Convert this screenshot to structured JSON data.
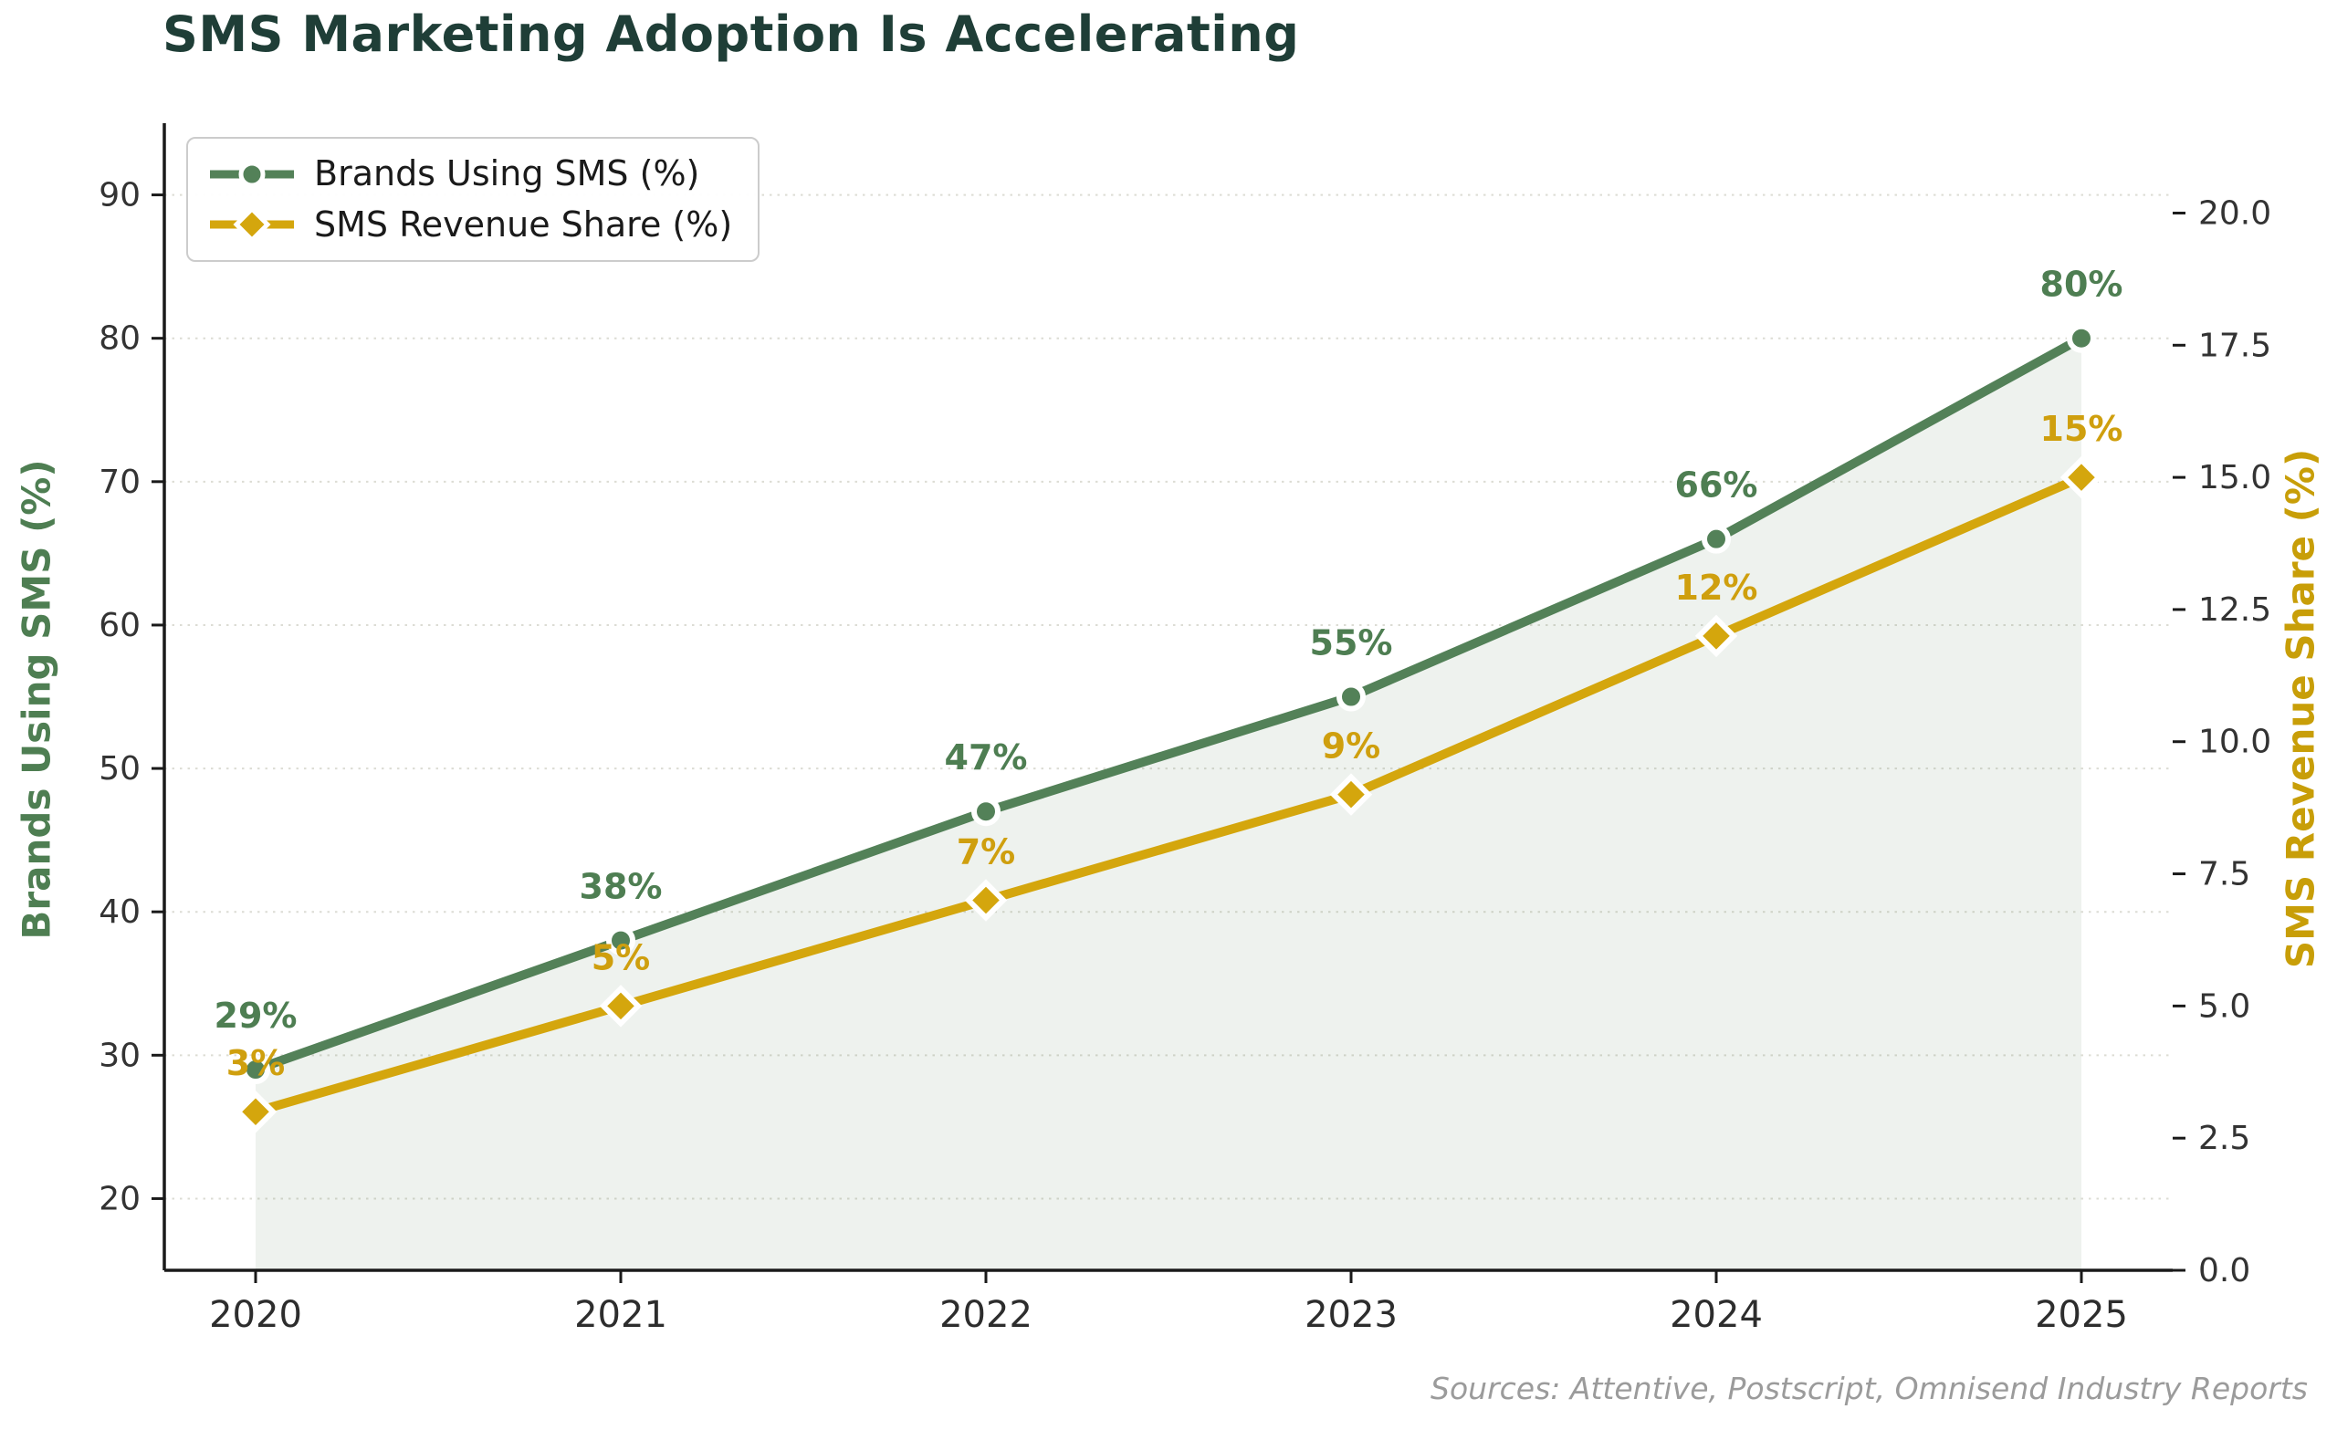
{
  "title": {
    "text": "SMS Marketing Adoption Is Accelerating",
    "color": "#1f3e37"
  },
  "source": "Sources: Attentive, Postscript, Omnisend Industry Reports",
  "chart_data": {
    "type": "line",
    "x": [
      2020,
      2021,
      2022,
      2023,
      2024,
      2025
    ],
    "x_tick_labels": [
      "2020",
      "2021",
      "2022",
      "2023",
      "2024",
      "2025"
    ],
    "series": [
      {
        "name": "Brands Using SMS (%)",
        "axis": "left",
        "values": [
          29,
          38,
          47,
          55,
          66,
          80
        ],
        "point_labels": [
          "29%",
          "38%",
          "47%",
          "55%",
          "66%",
          "80%"
        ],
        "color": "#538158",
        "label_color": "#4e7e52",
        "marker": "circle",
        "fill_to_bottom": true,
        "fill_color": "rgba(85,130,90,0.10)"
      },
      {
        "name": "SMS Revenue Share (%)",
        "axis": "right",
        "values": [
          3,
          5,
          7,
          9,
          12,
          15
        ],
        "point_labels": [
          "3%",
          "5%",
          "7%",
          "9%",
          "12%",
          "15%"
        ],
        "color": "#d4a60d",
        "label_color": "#cf9f0e",
        "marker": "diamond",
        "fill_to_bottom": false
      }
    ],
    "left_axis": {
      "label": "Brands Using SMS (%)",
      "color": "#4e7e52",
      "range": [
        15,
        95
      ],
      "ticks": [
        20,
        30,
        40,
        50,
        60,
        70,
        80,
        90
      ],
      "tick_labels": [
        "20",
        "30",
        "40",
        "50",
        "60",
        "70",
        "80",
        "90"
      ]
    },
    "right_axis": {
      "label": "SMS Revenue Share (%)",
      "color": "#c89e08",
      "range": [
        0,
        21.7
      ],
      "ticks": [
        0,
        2.5,
        5,
        7.5,
        10,
        12.5,
        15,
        17.5,
        20
      ],
      "tick_labels": [
        "0.0",
        "2.5",
        "5.0",
        "7.5",
        "10.0",
        "12.5",
        "15.0",
        "17.5",
        "20.0"
      ]
    },
    "grid": true,
    "grid_color": "#dcdcd4",
    "axis_color": "#1a1a1a",
    "tick_label_color": "#333333",
    "legend": {
      "position": "upper left",
      "entries": [
        "Brands Using SMS (%)",
        "SMS Revenue Share (%)"
      ]
    }
  }
}
